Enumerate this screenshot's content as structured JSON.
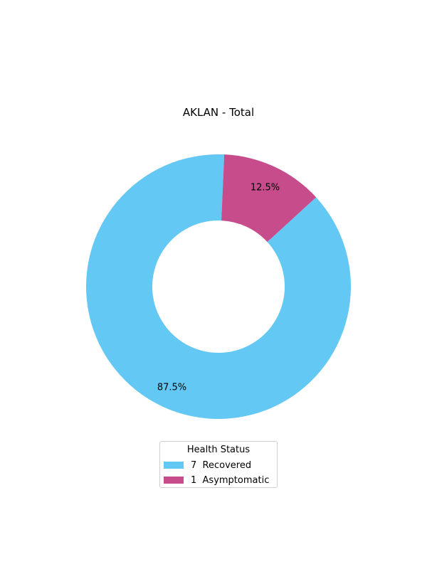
{
  "chart_data": {
    "type": "pie",
    "donut": true,
    "title": "AKLAN - Total",
    "legend_title": "Health Status",
    "legend_placement": "bottom-center",
    "start_angle_deg": 87.5,
    "direction": "counterclockwise",
    "slices": [
      {
        "label": "Recovered",
        "count": 7,
        "legend_text": "7  Recovered",
        "percent": 87.5,
        "percent_label": "87.5%",
        "color": "#63c8f3"
      },
      {
        "label": "Asymptomatic",
        "count": 1,
        "legend_text": "1  Asymptomatic",
        "percent": 12.5,
        "percent_label": "12.5%",
        "color": "#c64c8b"
      }
    ]
  }
}
